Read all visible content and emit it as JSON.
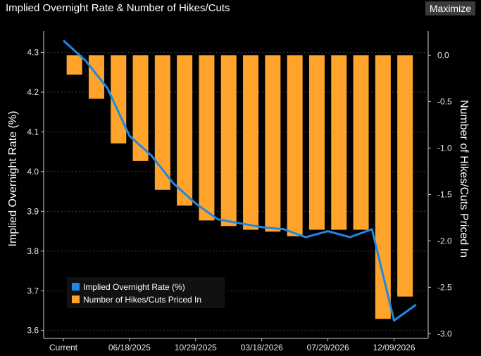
{
  "window": {
    "title": "Implied Overnight Rate & Number of Hikes/Cuts",
    "maximize_label": "Maximize"
  },
  "colors": {
    "background": "#000000",
    "bar": "#ffa32b",
    "line": "#1e88e5",
    "grid": "#3c3c3c",
    "text": "#e8e8e8"
  },
  "chart_data": {
    "type": "bar",
    "title": "Implied Overnight Rate & Number of Hikes/Cuts",
    "x_tick_labels": [
      "Current",
      "06/18/2025",
      "10/29/2025",
      "03/18/2026",
      "07/29/2026",
      "12/09/2026"
    ],
    "left_axis": {
      "label": "Implied Overnight Rate (%)",
      "range": [
        3.58,
        4.34
      ],
      "ticks": [
        4.3,
        4.2,
        4.1,
        4.0,
        3.9,
        3.8,
        3.7,
        3.6
      ],
      "tick_labels": [
        "4.3",
        "4.2",
        "4.1",
        "4.0",
        "3.9",
        "3.8",
        "3.7",
        "3.6"
      ]
    },
    "right_axis": {
      "label": "Number of Hikes/Cuts Priced In",
      "range": [
        -3.05,
        0.2
      ],
      "ticks": [
        0.0,
        -0.5,
        -1.0,
        -1.5,
        -2.0,
        -2.5,
        -3.0
      ],
      "tick_labels": [
        "0.0",
        "-0.5",
        "-1.0",
        "-1.5",
        "-2.0",
        "-2.5",
        "-3.0"
      ]
    },
    "series": [
      {
        "name": "Implied Overnight Rate (%)",
        "type": "line",
        "axis": "left",
        "x": [
          0,
          1,
          2,
          3,
          4,
          5,
          6,
          7,
          8,
          9,
          10,
          11,
          12,
          13,
          14,
          15,
          16
        ],
        "values": [
          4.33,
          4.28,
          4.21,
          4.09,
          4.04,
          3.97,
          3.92,
          3.88,
          3.87,
          3.86,
          3.855,
          3.835,
          3.85,
          3.835,
          3.855,
          3.625,
          3.665
        ]
      },
      {
        "name": "Number of Hikes/Cuts Priced In",
        "type": "bar",
        "axis": "right",
        "x": [
          0.5,
          1.5,
          2.5,
          3.5,
          4.5,
          5.5,
          6.5,
          7.5,
          8.5,
          9.5,
          10.5,
          11.5,
          12.5,
          13.5,
          14.5,
          15.5
        ],
        "values": [
          -0.21,
          -0.47,
          -0.95,
          -1.14,
          -1.45,
          -1.62,
          -1.78,
          -1.84,
          -1.88,
          -1.9,
          -1.95,
          -1.88,
          -1.88,
          -1.88,
          -2.84,
          -2.6
        ]
      }
    ],
    "legend": {
      "position": "bottom-left",
      "items": [
        "Implied Overnight Rate (%)",
        "Number of Hikes/Cuts Priced In"
      ]
    }
  }
}
